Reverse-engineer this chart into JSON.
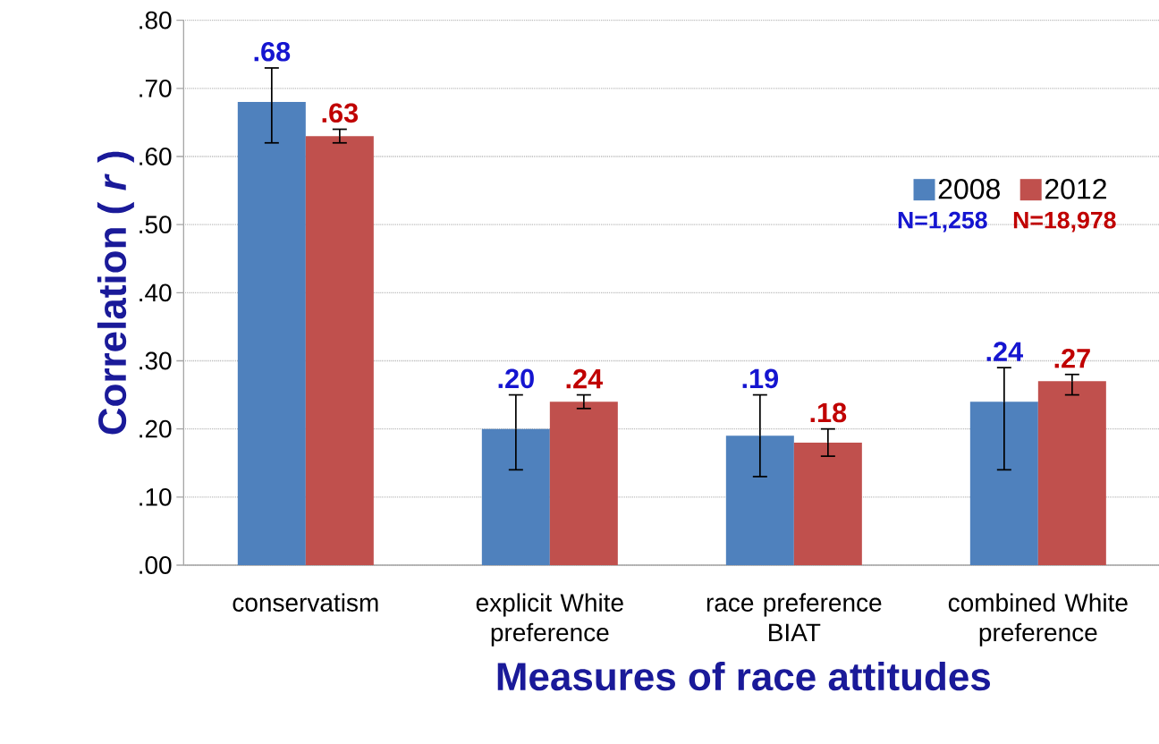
{
  "chart_data": {
    "type": "bar",
    "xlabel": "Measures of race attitudes",
    "ylabel": "Correlation ( *r* )",
    "categories": [
      "conservatism",
      "explicit White preference",
      "race preference BIAT",
      "combined White preference"
    ],
    "series": [
      {
        "name": "2008",
        "color": "#4f81bd",
        "values": [
          0.68,
          0.2,
          0.19,
          0.24
        ],
        "value_labels": [
          ".68",
          ".20",
          ".19",
          ".24"
        ],
        "errors": [
          [
            0.62,
            0.73
          ],
          [
            0.14,
            0.25
          ],
          [
            0.13,
            0.25
          ],
          [
            0.14,
            0.29
          ]
        ]
      },
      {
        "name": "2012",
        "color": "#c0504d",
        "values": [
          0.63,
          0.24,
          0.18,
          0.27
        ],
        "value_labels": [
          ".63",
          ".24",
          ".18",
          ".27"
        ],
        "errors": [
          [
            0.62,
            0.64
          ],
          [
            0.23,
            0.25
          ],
          [
            0.16,
            0.2
          ],
          [
            0.25,
            0.28
          ]
        ]
      }
    ],
    "ylim": [
      0,
      0.8
    ],
    "yticks": [
      {
        "value": 0,
        "label": ".00"
      },
      {
        "value": 0.1,
        "label": ".10"
      },
      {
        "value": 0.2,
        "label": ".20"
      },
      {
        "value": 0.3,
        "label": ".30"
      },
      {
        "value": 0.4,
        "label": ".40"
      },
      {
        "value": 0.5,
        "label": ".50"
      },
      {
        "value": 0.6,
        "label": ".60"
      },
      {
        "value": 0.7,
        "label": ".70"
      },
      {
        "value": 0.8,
        "label": ".80"
      }
    ],
    "grid": "y",
    "legend": "right",
    "annotations": [
      "N=1,258",
      "N=18,978"
    ]
  }
}
